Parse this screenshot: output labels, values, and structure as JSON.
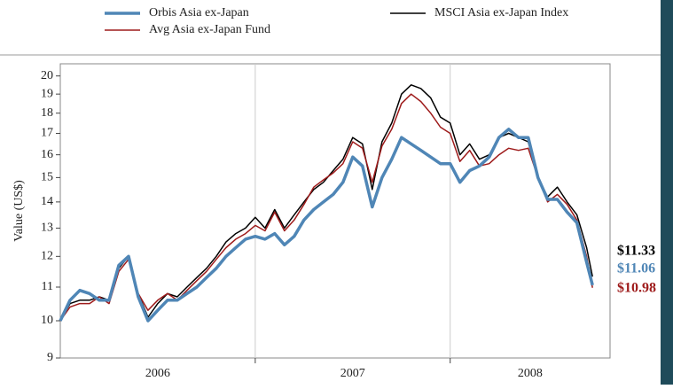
{
  "chart_data": {
    "type": "line",
    "ylabel": "Value (US$)",
    "log_scale": true,
    "grid": true,
    "legend": "top",
    "x": [
      2006.0,
      2006.05,
      2006.1,
      2006.15,
      2006.2,
      2006.25,
      2006.3,
      2006.35,
      2006.4,
      2006.45,
      2006.5,
      2006.55,
      2006.6,
      2006.65,
      2006.7,
      2006.75,
      2006.8,
      2006.85,
      2006.9,
      2006.95,
      2007.0,
      2007.05,
      2007.1,
      2007.15,
      2007.2,
      2007.25,
      2007.3,
      2007.35,
      2007.4,
      2007.45,
      2007.5,
      2007.55,
      2007.6,
      2007.65,
      2007.7,
      2007.75,
      2007.8,
      2007.85,
      2007.9,
      2007.95,
      2008.0,
      2008.05,
      2008.1,
      2008.15,
      2008.2,
      2008.25,
      2008.3,
      2008.35,
      2008.4,
      2008.45,
      2008.5,
      2008.55,
      2008.6,
      2008.65,
      2008.7,
      2008.73
    ],
    "xlim": [
      2006.0,
      2008.82
    ],
    "xticks": [
      2007,
      2008
    ],
    "categories": [
      "2006",
      "2007",
      "2008"
    ],
    "category_centers": [
      2006.5,
      2007.5,
      2008.41
    ],
    "ylim": [
      9,
      20.7
    ],
    "yticks": [
      9,
      10,
      11,
      12,
      13,
      14,
      15,
      16,
      17,
      18,
      19,
      20
    ],
    "series": [
      {
        "name": "Orbis Asia ex-Japan",
        "color": "#4f86b6",
        "width": 3.5,
        "end_label": "$11.06",
        "values": [
          10.0,
          10.6,
          10.9,
          10.8,
          10.6,
          10.6,
          11.7,
          12.0,
          10.7,
          10.0,
          10.3,
          10.6,
          10.6,
          10.8,
          11.0,
          11.3,
          11.6,
          12.0,
          12.3,
          12.6,
          12.7,
          12.6,
          12.8,
          12.4,
          12.7,
          13.3,
          13.7,
          14.0,
          14.3,
          14.8,
          15.9,
          15.5,
          13.8,
          15.0,
          15.8,
          16.8,
          16.5,
          16.2,
          15.9,
          15.6,
          15.6,
          14.8,
          15.3,
          15.5,
          15.9,
          16.8,
          17.2,
          16.8,
          16.8,
          15.0,
          14.1,
          14.1,
          13.6,
          13.2,
          11.8,
          11.06
        ]
      },
      {
        "name": "MSCI Asia ex-Japan Index",
        "color": "#000000",
        "width": 1.5,
        "end_label": "$11.33",
        "values": [
          10.0,
          10.5,
          10.6,
          10.6,
          10.7,
          10.6,
          11.6,
          12.0,
          10.8,
          10.1,
          10.5,
          10.8,
          10.7,
          11.0,
          11.3,
          11.6,
          12.0,
          12.5,
          12.8,
          13.0,
          13.4,
          13.0,
          13.7,
          13.0,
          13.5,
          14.0,
          14.5,
          14.8,
          15.3,
          15.8,
          16.8,
          16.5,
          14.5,
          16.6,
          17.5,
          19.0,
          19.5,
          19.3,
          18.8,
          17.8,
          17.5,
          16.0,
          16.5,
          15.8,
          16.0,
          16.8,
          17.0,
          16.8,
          16.6,
          15.0,
          14.2,
          14.6,
          14.0,
          13.5,
          12.3,
          11.33
        ]
      },
      {
        "name": "Avg Asia ex-Japan Fund",
        "color": "#9e1b1b",
        "width": 1.5,
        "end_label": "$10.98",
        "values": [
          10.0,
          10.4,
          10.5,
          10.5,
          10.7,
          10.5,
          11.5,
          11.9,
          10.8,
          10.3,
          10.6,
          10.8,
          10.6,
          10.9,
          11.2,
          11.5,
          11.9,
          12.3,
          12.6,
          12.8,
          13.1,
          12.9,
          13.6,
          12.9,
          13.3,
          13.9,
          14.6,
          14.9,
          15.2,
          15.6,
          16.6,
          16.3,
          14.8,
          16.4,
          17.2,
          18.5,
          19.0,
          18.6,
          18.0,
          17.3,
          17.0,
          15.7,
          16.2,
          15.5,
          15.6,
          16.0,
          16.3,
          16.2,
          16.3,
          15.0,
          14.0,
          14.3,
          13.9,
          13.3,
          12.0,
          10.98
        ]
      }
    ]
  }
}
